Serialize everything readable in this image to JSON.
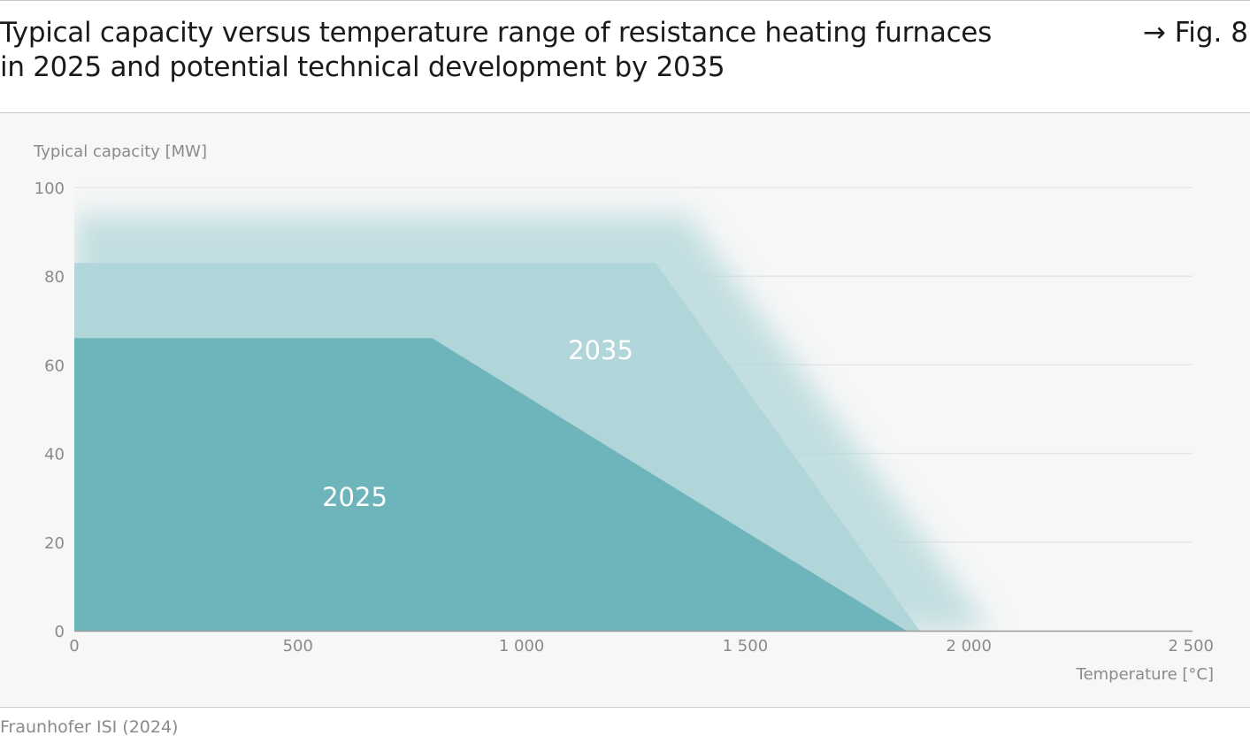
{
  "header": {
    "title_line1": "Typical capacity versus temperature range of resistance heating furnaces",
    "title_line2": "in 2025 and potential technical development by 2035",
    "fig_ref": "→ Fig. 8"
  },
  "footer": {
    "source": "Fraunhofer ISI (2024)"
  },
  "colors": {
    "area_2025": "#6db4bb",
    "area_2035": "#b1d6d9",
    "gridline": "#e6e6e6",
    "axis_text": "#8a8a8a"
  },
  "chart_data": {
    "type": "area",
    "title": "",
    "ylabel": "Typical capacity [MW]",
    "xlabel": "Temperature [°C]",
    "xlim": [
      0,
      2500
    ],
    "ylim": [
      0,
      100
    ],
    "x_ticks": [
      0,
      500,
      1000,
      1500,
      2000,
      2500
    ],
    "x_tick_labels": [
      "0",
      "500",
      "1 000",
      "1 500",
      "2 000",
      "2 500"
    ],
    "y_ticks": [
      0,
      20,
      40,
      60,
      80,
      100
    ],
    "y_tick_labels": [
      "0",
      "20",
      "40",
      "60",
      "80",
      "100"
    ],
    "grid": true,
    "series": [
      {
        "name": "2025",
        "points": [
          [
            0,
            66
          ],
          [
            800,
            66
          ],
          [
            1860,
            0
          ],
          [
            0,
            0
          ]
        ]
      },
      {
        "name": "2035",
        "points": [
          [
            0,
            83
          ],
          [
            1300,
            83
          ],
          [
            1890,
            0
          ],
          [
            0,
            0
          ]
        ],
        "fuzzy_extension": {
          "top_capacity": 94,
          "top_temperature_end": 1370,
          "temperature_end": 2050
        }
      }
    ]
  }
}
